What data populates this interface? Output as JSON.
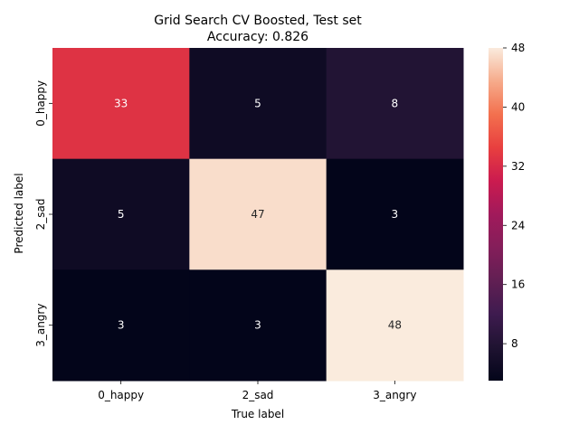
{
  "chart_data": {
    "type": "heatmap",
    "title": "Grid Search CV Boosted, Test set",
    "subtitle": "Accuracy: 0.826",
    "xlabel": "True label",
    "ylabel": "Predicted label",
    "x_categories": [
      "0_happy",
      "2_sad",
      "3_angry"
    ],
    "y_categories": [
      "0_happy",
      "2_sad",
      "3_angry"
    ],
    "matrix": [
      [
        33,
        5,
        8
      ],
      [
        5,
        47,
        3
      ],
      [
        3,
        3,
        48
      ]
    ],
    "colorbar": {
      "range": [
        3,
        48
      ],
      "ticks": [
        8,
        16,
        24,
        32,
        40,
        48
      ],
      "colormap": "rocket"
    },
    "annotation_colors": {
      "on_dark": "#ffffff",
      "on_light": "#262626"
    }
  }
}
